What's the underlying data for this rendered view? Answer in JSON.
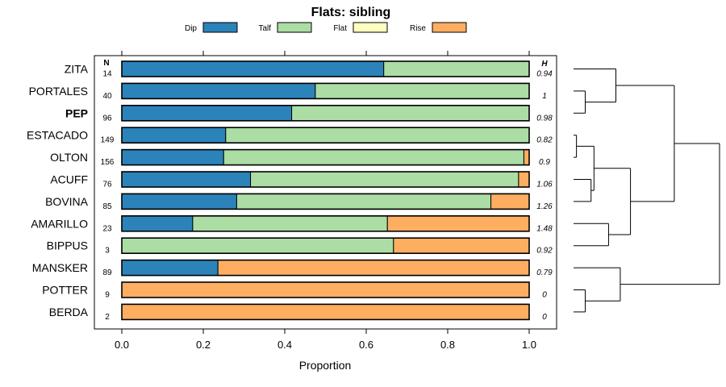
{
  "chart_data": {
    "type": "stacked-bar-horizontal",
    "title": "Flats: sibling",
    "xlabel": "Proportion",
    "ylabel": "",
    "xlim": [
      -0.06,
      1.07
    ],
    "xticks": [
      "0.0",
      "0.2",
      "0.4",
      "0.6",
      "0.8",
      "1.0"
    ],
    "n_header": "N",
    "h_header": "H",
    "legend": [
      {
        "name": "Dip",
        "color": "#2b83ba"
      },
      {
        "name": "Talf",
        "color": "#abdda4"
      },
      {
        "name": "Flat",
        "color": "#ffffbf"
      },
      {
        "name": "Rise",
        "color": "#fdae61"
      }
    ],
    "rows": [
      {
        "label": "ZITA",
        "bold": false,
        "n": "14",
        "h": "0.94",
        "values": [
          0.643,
          0.357,
          0,
          0
        ]
      },
      {
        "label": "PORTALES",
        "bold": false,
        "n": "40",
        "h": "1",
        "values": [
          0.475,
          0.525,
          0,
          0
        ]
      },
      {
        "label": "PEP",
        "bold": true,
        "n": "96",
        "h": "0.98",
        "values": [
          0.417,
          0.583,
          0,
          0
        ]
      },
      {
        "label": "ESTACADO",
        "bold": false,
        "n": "149",
        "h": "0.82",
        "values": [
          0.255,
          0.745,
          0,
          0
        ]
      },
      {
        "label": "OLTON",
        "bold": false,
        "n": "156",
        "h": "0.9",
        "values": [
          0.25,
          0.737,
          0,
          0.013
        ]
      },
      {
        "label": "ACUFF",
        "bold": false,
        "n": "76",
        "h": "1.06",
        "values": [
          0.316,
          0.658,
          0,
          0.026
        ]
      },
      {
        "label": "BOVINA",
        "bold": false,
        "n": "85",
        "h": "1.26",
        "values": [
          0.282,
          0.624,
          0,
          0.094
        ]
      },
      {
        "label": "AMARILLO",
        "bold": false,
        "n": "23",
        "h": "1.48",
        "values": [
          0.174,
          0.478,
          0,
          0.348
        ]
      },
      {
        "label": "BIPPUS",
        "bold": false,
        "n": "3",
        "h": "0.92",
        "values": [
          0,
          0.667,
          0,
          0.333
        ]
      },
      {
        "label": "MANSKER",
        "bold": false,
        "n": "89",
        "h": "0.79",
        "values": [
          0.236,
          0,
          0,
          0.764
        ]
      },
      {
        "label": "POTTER",
        "bold": false,
        "n": "9",
        "h": "0",
        "values": [
          0,
          0,
          0,
          1
        ]
      },
      {
        "label": "BERDA",
        "bold": false,
        "n": "2",
        "h": "0",
        "values": [
          0,
          0,
          0,
          1
        ]
      }
    ],
    "dendrogram": {
      "leaf_order": [
        "ZITA",
        "PORTALES",
        "PEP",
        "ESTACADO",
        "OLTON",
        "ACUFF",
        "BOVINA",
        "AMARILLO",
        "BIPPUS",
        "MANSKER",
        "POTTER",
        "BERDA"
      ],
      "merges": [
        {
          "a": "ESTACADO",
          "b": "OLTON",
          "height": 0.02
        },
        {
          "a": "POTTER",
          "b": "BERDA",
          "height": 0.08
        },
        {
          "a": "PORTALES",
          "b": "PEP",
          "height": 0.08
        },
        {
          "a": "ACUFF",
          "b": "BOVINA",
          "height": 0.12
        },
        {
          "a": "ESTACADO+OLTON",
          "b": "ACUFF+BOVINA",
          "height": 0.14
        },
        {
          "a": "ZITA",
          "b": "PORTALES+PEP",
          "height": 0.29
        },
        {
          "a": "AMARILLO",
          "b": "BIPPUS",
          "height": 0.24
        },
        {
          "a": "ESTACADO+OLTON+ACUFF+BOVINA",
          "b": "AMARILLO+BIPPUS",
          "height": 0.39
        },
        {
          "a": "MANSKER",
          "b": "POTTER+BERDA",
          "height": 0.32
        },
        {
          "a": "ZITA+PORTALES+PEP",
          "b": "ESTACADO+OLTON+ACUFF+BOVINA+AMARILLO+BIPPUS",
          "height": 0.69
        },
        {
          "a": "ALL_UPPER",
          "b": "MANSKER+POTTER+BERDA",
          "height": 1.0
        }
      ]
    }
  }
}
